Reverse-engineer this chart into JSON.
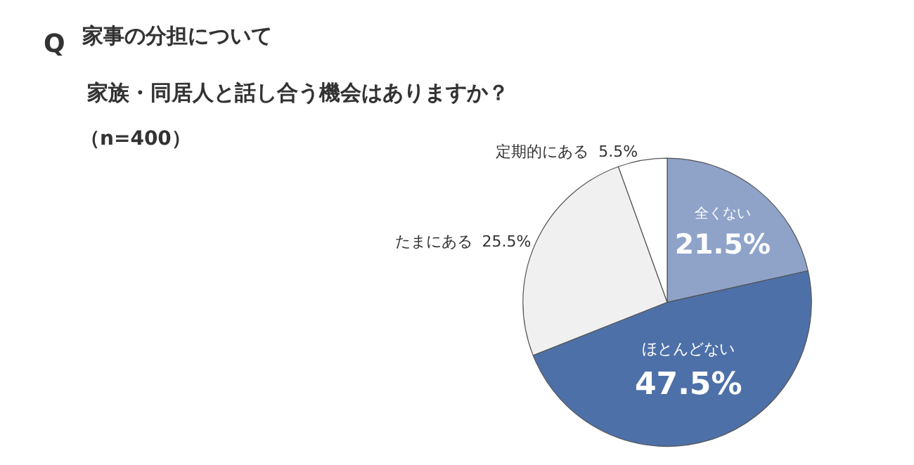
{
  "chart_data": {
    "type": "pie",
    "title": "家事の分担について",
    "subtitle": "家族・同居人と話し合う機会はありますか？",
    "annotations": [
      "Q",
      "（n=400）"
    ],
    "categories": [
      "全くない",
      "ほとんどない",
      "たまにある",
      "定期的にある"
    ],
    "values": [
      21.5,
      47.5,
      25.5,
      5.5
    ],
    "value_labels": [
      "21.5%",
      "47.5%",
      "25.5%",
      "5.5%"
    ],
    "colors": [
      "#8fa3c9",
      "#4d70a8",
      "#f0f0f0",
      "#ffffff"
    ],
    "legend": false
  }
}
